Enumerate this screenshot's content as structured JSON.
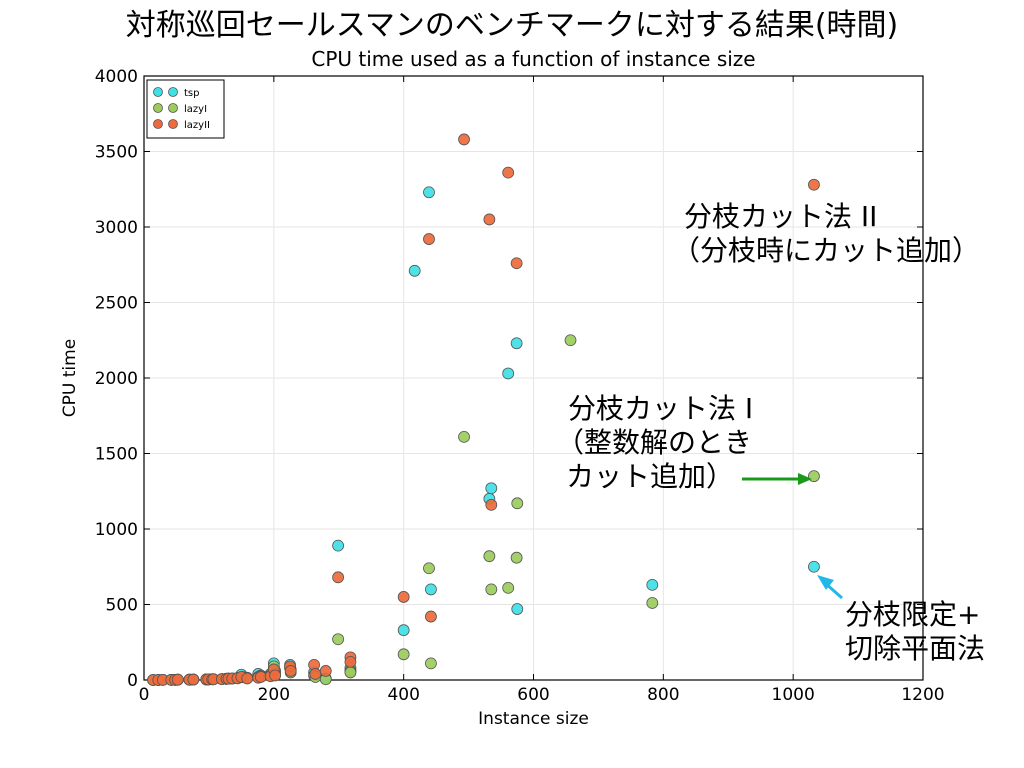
{
  "slide": {
    "title": "対称巡回セールスマンのベンチマークに対する結果(時間)"
  },
  "annotations": {
    "bc2": [
      "分枝カット法 II",
      "（分枝時にカット追加）"
    ],
    "bc1": [
      "分枝カット法 I",
      "（整数解のとき",
      "カット追加）"
    ],
    "bb": [
      "分枝限定+",
      "切除平面法"
    ]
  },
  "colors": {
    "tsp": "#3fe0e6",
    "lazyI": "#9ccc5c",
    "lazyII": "#ee6a3c",
    "arrow_green": "#1a9a1a",
    "arrow_cyan": "#22b8e6"
  },
  "chart_data": {
    "type": "scatter",
    "title": "CPU time used as a function of instance size",
    "xlabel": "Instance size",
    "ylabel": "CPU time",
    "xlim": [
      0,
      1200
    ],
    "ylim": [
      0,
      4000
    ],
    "xticks": [
      0,
      200,
      400,
      600,
      800,
      1000,
      1200
    ],
    "yticks": [
      0,
      500,
      1000,
      1500,
      2000,
      2500,
      3000,
      3500,
      4000
    ],
    "grid": true,
    "legend_position": "top-left",
    "series": [
      {
        "name": "tsp",
        "points": [
          [
            14,
            0
          ],
          [
            22,
            0
          ],
          [
            29,
            1
          ],
          [
            42,
            1
          ],
          [
            48,
            1
          ],
          [
            52,
            2
          ],
          [
            70,
            2
          ],
          [
            76,
            3
          ],
          [
            96,
            4
          ],
          [
            99,
            4
          ],
          [
            105,
            5
          ],
          [
            107,
            5
          ],
          [
            120,
            6
          ],
          [
            127,
            8
          ],
          [
            130,
            9
          ],
          [
            136,
            10
          ],
          [
            144,
            12
          ],
          [
            150,
            35
          ],
          [
            152,
            20
          ],
          [
            159,
            15
          ],
          [
            176,
            40
          ],
          [
            180,
            30
          ],
          [
            195,
            40
          ],
          [
            200,
            110
          ],
          [
            202,
            60
          ],
          [
            225,
            100
          ],
          [
            226,
            70
          ],
          [
            262,
            50
          ],
          [
            264,
            30
          ],
          [
            280,
            10
          ],
          [
            299,
            890
          ],
          [
            318,
            80
          ],
          [
            318,
            60
          ],
          [
            400,
            330
          ],
          [
            417,
            2710
          ],
          [
            439,
            3230
          ],
          [
            442,
            600
          ],
          [
            532,
            1200
          ],
          [
            535,
            1270
          ],
          [
            561,
            2030
          ],
          [
            574,
            2230
          ],
          [
            575,
            470
          ],
          [
            783,
            630
          ],
          [
            1032,
            750
          ]
        ]
      },
      {
        "name": "lazyI",
        "points": [
          [
            14,
            0
          ],
          [
            22,
            0
          ],
          [
            29,
            1
          ],
          [
            42,
            1
          ],
          [
            48,
            1
          ],
          [
            52,
            2
          ],
          [
            70,
            2
          ],
          [
            76,
            3
          ],
          [
            96,
            4
          ],
          [
            99,
            4
          ],
          [
            105,
            5
          ],
          [
            107,
            5
          ],
          [
            120,
            6
          ],
          [
            127,
            8
          ],
          [
            130,
            9
          ],
          [
            136,
            10
          ],
          [
            144,
            12
          ],
          [
            150,
            18
          ],
          [
            159,
            12
          ],
          [
            176,
            20
          ],
          [
            180,
            25
          ],
          [
            195,
            30
          ],
          [
            200,
            90
          ],
          [
            202,
            40
          ],
          [
            225,
            80
          ],
          [
            226,
            50
          ],
          [
            262,
            30
          ],
          [
            264,
            20
          ],
          [
            280,
            5
          ],
          [
            299,
            270
          ],
          [
            318,
            60
          ],
          [
            318,
            50
          ],
          [
            400,
            170
          ],
          [
            439,
            740
          ],
          [
            442,
            110
          ],
          [
            493,
            1610
          ],
          [
            532,
            820
          ],
          [
            535,
            600
          ],
          [
            561,
            610
          ],
          [
            574,
            810
          ],
          [
            575,
            1170
          ],
          [
            657,
            2250
          ],
          [
            783,
            510
          ],
          [
            1032,
            1350
          ]
        ]
      },
      {
        "name": "lazyII",
        "points": [
          [
            14,
            0
          ],
          [
            22,
            0
          ],
          [
            29,
            1
          ],
          [
            42,
            1
          ],
          [
            48,
            1
          ],
          [
            52,
            2
          ],
          [
            70,
            2
          ],
          [
            76,
            3
          ],
          [
            96,
            4
          ],
          [
            99,
            4
          ],
          [
            105,
            5
          ],
          [
            107,
            5
          ],
          [
            120,
            6
          ],
          [
            127,
            8
          ],
          [
            130,
            9
          ],
          [
            136,
            10
          ],
          [
            144,
            12
          ],
          [
            150,
            20
          ],
          [
            159,
            10
          ],
          [
            176,
            15
          ],
          [
            180,
            20
          ],
          [
            195,
            25
          ],
          [
            200,
            70
          ],
          [
            202,
            30
          ],
          [
            225,
            90
          ],
          [
            226,
            60
          ],
          [
            262,
            100
          ],
          [
            264,
            40
          ],
          [
            280,
            60
          ],
          [
            299,
            680
          ],
          [
            318,
            150
          ],
          [
            318,
            120
          ],
          [
            400,
            550
          ],
          [
            439,
            2920
          ],
          [
            442,
            420
          ],
          [
            493,
            3580
          ],
          [
            532,
            3050
          ],
          [
            535,
            1160
          ],
          [
            561,
            3360
          ],
          [
            574,
            2760
          ],
          [
            1032,
            3280
          ]
        ]
      }
    ]
  }
}
